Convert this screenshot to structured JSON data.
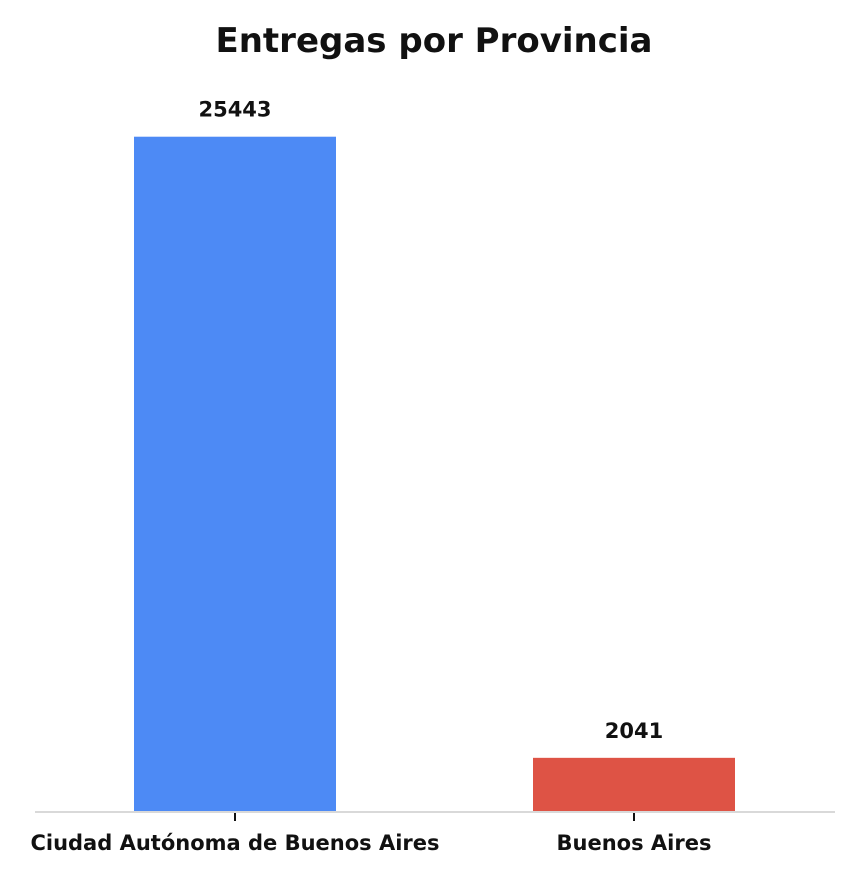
{
  "chart_data": {
    "type": "bar",
    "title": "Entregas por Provincia",
    "xlabel": "",
    "ylabel": "",
    "categories": [
      "Ciudad Autónoma de Buenos Aires",
      "Buenos Aires"
    ],
    "values": [
      25443,
      2041
    ],
    "data_labels": [
      "25443",
      "2041"
    ],
    "bar_colors": [
      "#4d8af5",
      "#de5345"
    ],
    "ylim": [
      0,
      26600
    ],
    "grid": false,
    "legend": "none"
  }
}
